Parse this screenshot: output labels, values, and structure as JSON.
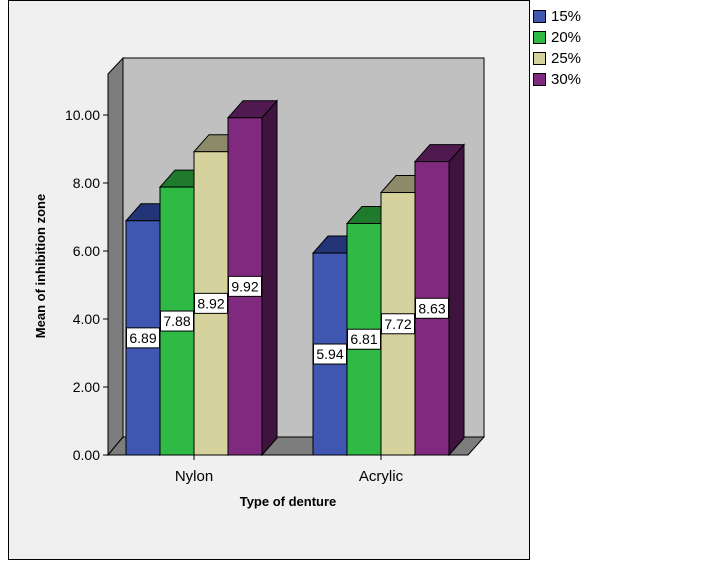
{
  "chart_data": {
    "type": "bar",
    "title": "",
    "xlabel": "Type of denture",
    "ylabel": "Mean of inhibition zone",
    "ylim": [
      0,
      10
    ],
    "y_ticks": [
      "0.00",
      "2.00",
      "4.00",
      "6.00",
      "8.00",
      "10.00"
    ],
    "categories": [
      "Nylon",
      "Acrylic"
    ],
    "series": [
      {
        "name": "15%",
        "values": [
          6.89,
          5.94
        ],
        "labels": [
          "6.89",
          "5.94"
        ],
        "color": "#3f57b0",
        "top_color": "#243577",
        "side_color": "#1c285a"
      },
      {
        "name": "20%",
        "values": [
          7.88,
          6.81
        ],
        "labels": [
          "7.88",
          "6.81"
        ],
        "color": "#2fba46",
        "top_color": "#1f7a2e",
        "side_color": "#175d23"
      },
      {
        "name": "25%",
        "values": [
          8.92,
          7.72
        ],
        "labels": [
          "8.92",
          "7.72"
        ],
        "color": "#d6d29e",
        "top_color": "#8c8a68",
        "side_color": "#6e6c50"
      },
      {
        "name": "30%",
        "values": [
          9.92,
          8.63
        ],
        "labels": [
          "9.92",
          "8.63"
        ],
        "color": "#7f2a7e",
        "top_color": "#501a50",
        "side_color": "#3e143e"
      }
    ],
    "grid": false,
    "legend": "top-right",
    "style": "3d"
  }
}
